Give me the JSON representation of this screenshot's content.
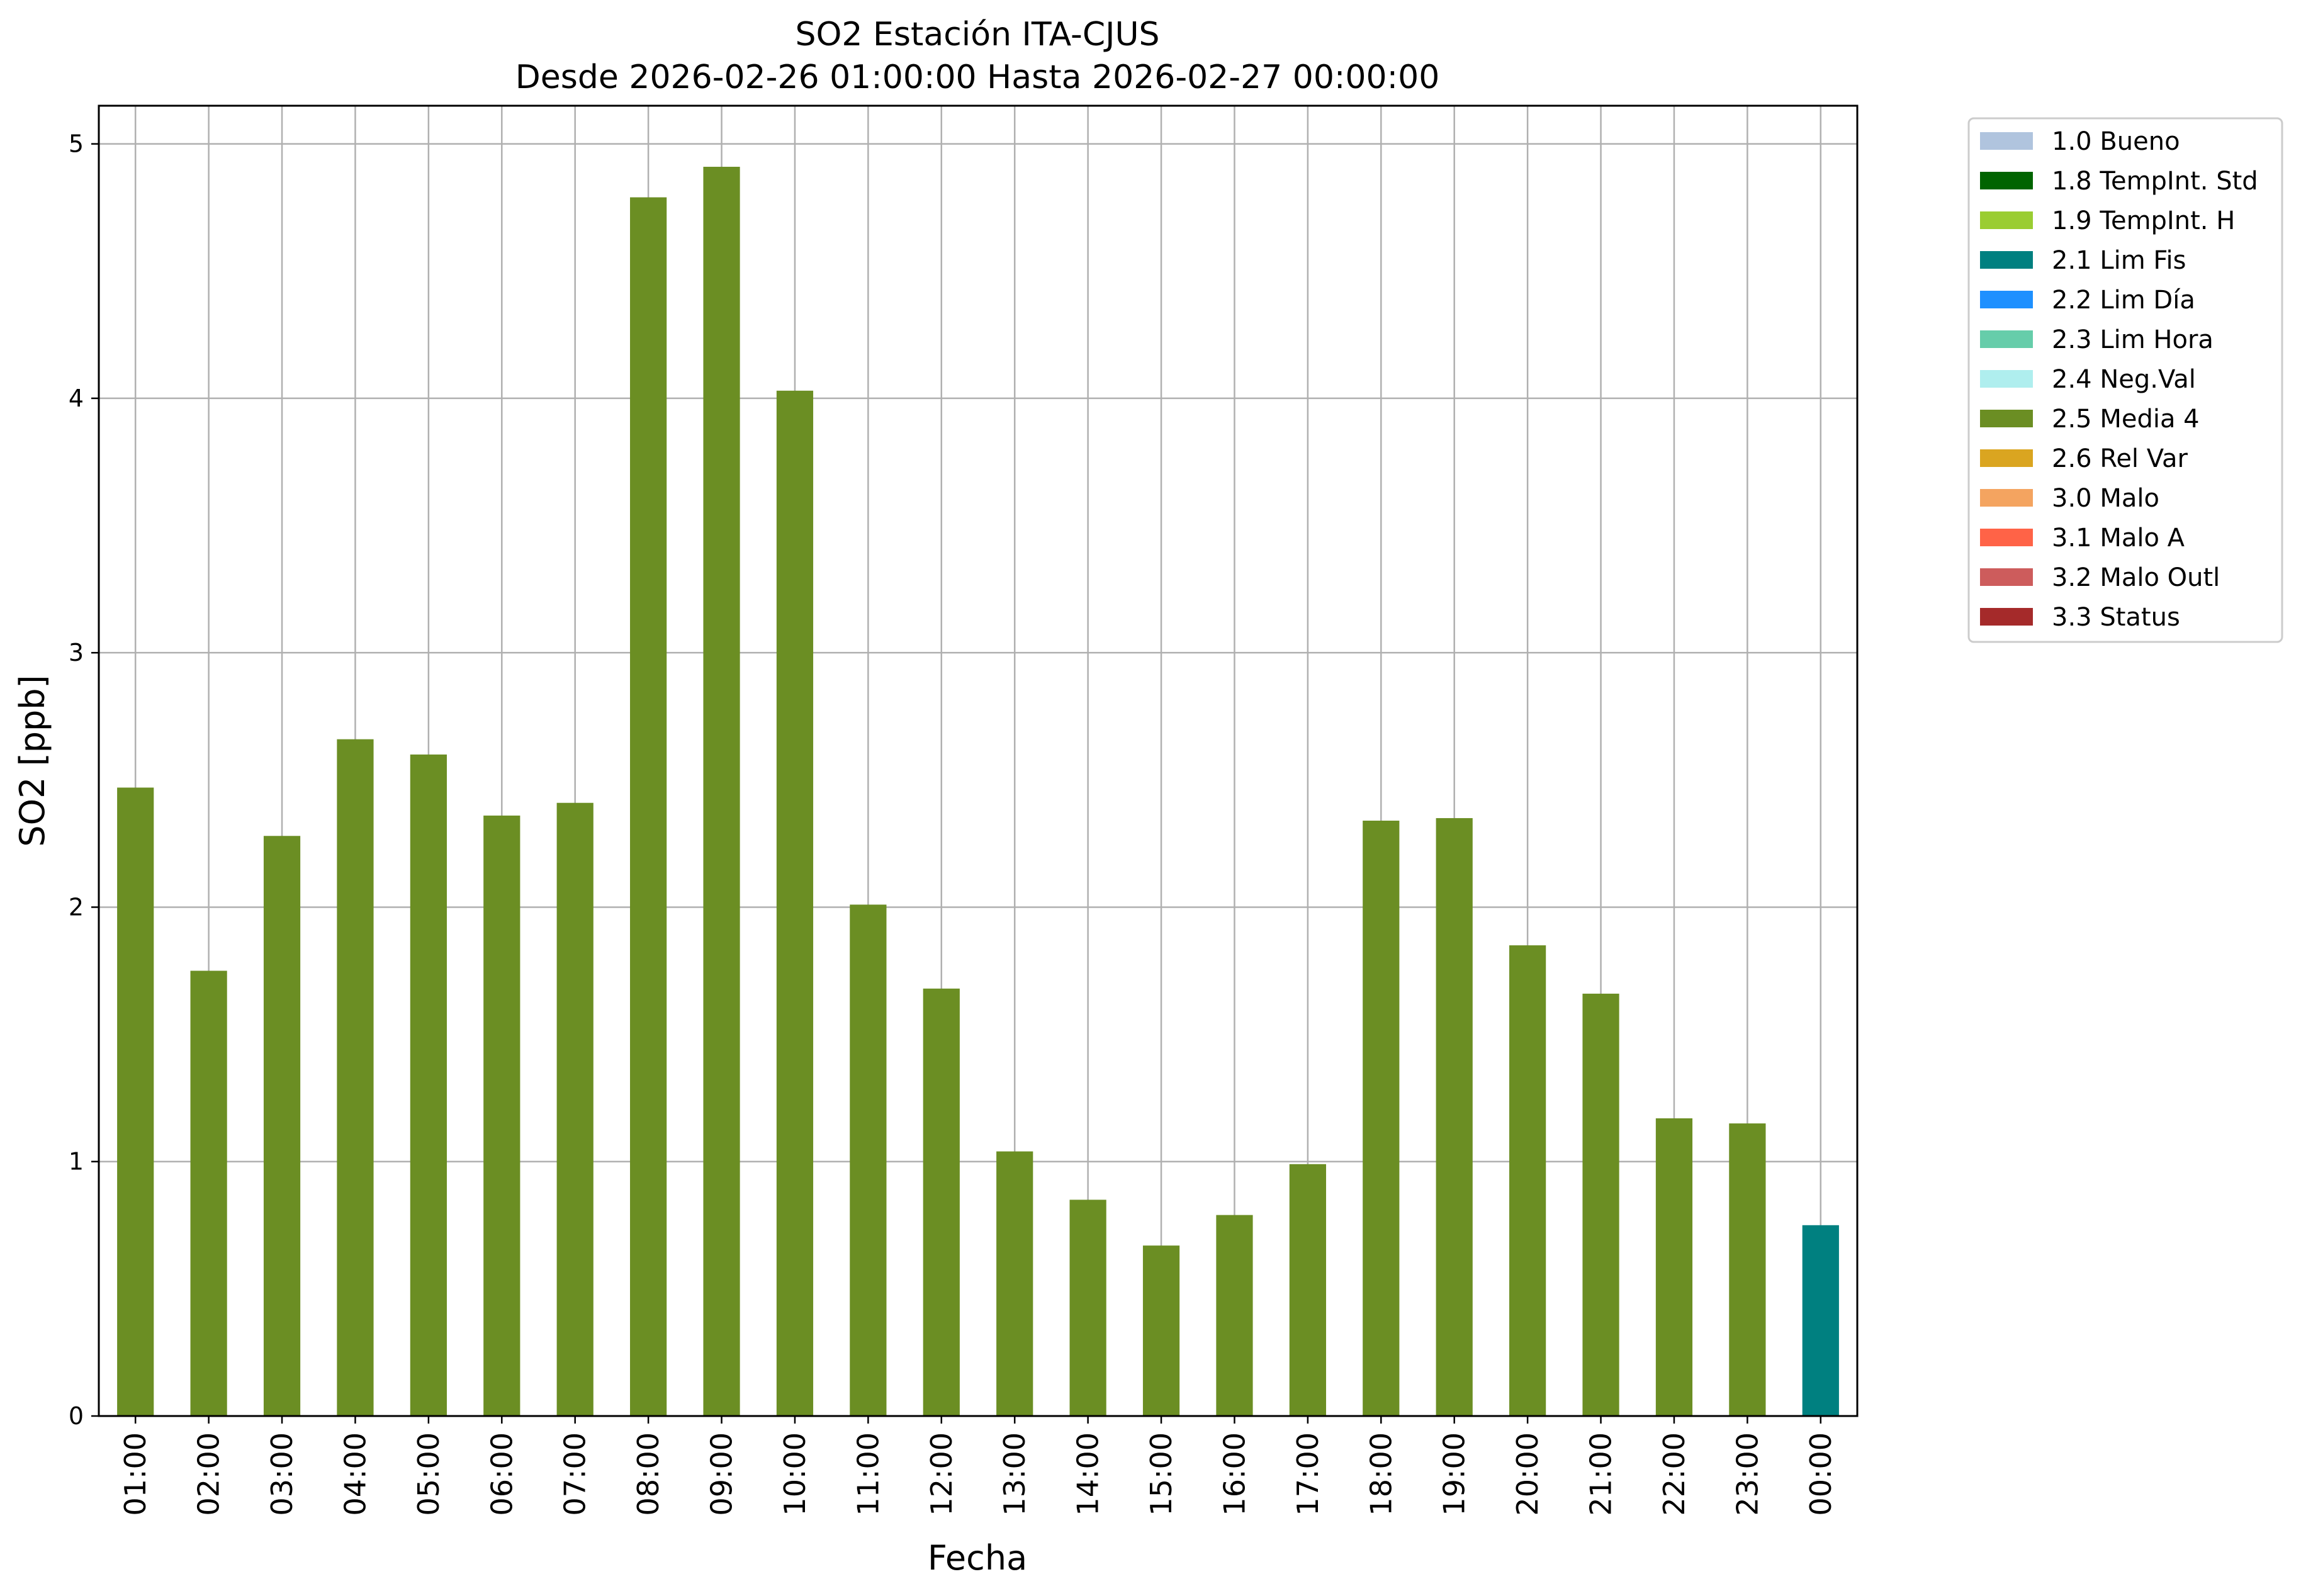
{
  "chart_data": {
    "type": "bar",
    "title": "SO2 Estación ITA-CJUS",
    "subtitle": "Desde 2026-02-26 01:00:00 Hasta 2026-02-27 00:00:00",
    "xlabel": "Fecha",
    "ylabel": "SO2 [ppb]",
    "ylim": [
      0,
      5.15
    ],
    "yticks": [
      0,
      1,
      2,
      3,
      4,
      5
    ],
    "grid": true,
    "legend_position": "outside-right",
    "categories": [
      "01:00",
      "02:00",
      "03:00",
      "04:00",
      "05:00",
      "06:00",
      "07:00",
      "08:00",
      "09:00",
      "10:00",
      "11:00",
      "12:00",
      "13:00",
      "14:00",
      "15:00",
      "16:00",
      "17:00",
      "18:00",
      "19:00",
      "20:00",
      "21:00",
      "22:00",
      "23:00",
      "00:00"
    ],
    "values": [
      2.47,
      1.75,
      2.28,
      2.66,
      2.6,
      2.36,
      2.41,
      4.79,
      4.91,
      4.03,
      2.01,
      1.68,
      1.04,
      0.85,
      0.67,
      0.79,
      0.99,
      2.34,
      2.35,
      1.85,
      1.66,
      1.17,
      1.15,
      0.75
    ],
    "bar_flags": [
      "2.5 Media 4",
      "2.5 Media 4",
      "2.5 Media 4",
      "2.5 Media 4",
      "2.5 Media 4",
      "2.5 Media 4",
      "2.5 Media 4",
      "2.5 Media 4",
      "2.5 Media 4",
      "2.5 Media 4",
      "2.5 Media 4",
      "2.5 Media 4",
      "2.5 Media 4",
      "2.5 Media 4",
      "2.5 Media 4",
      "2.5 Media 4",
      "2.5 Media 4",
      "2.5 Media 4",
      "2.5 Media 4",
      "2.5 Media 4",
      "2.5 Media 4",
      "2.5 Media 4",
      "2.5 Media 4",
      "2.1 Lim Fis"
    ],
    "legend": [
      {
        "label": "1.0 Bueno",
        "color": "#b0c4de"
      },
      {
        "label": "1.8 TempInt. Std",
        "color": "#006400"
      },
      {
        "label": "1.9 TempInt. H",
        "color": "#9acd32"
      },
      {
        "label": "2.1 Lim Fis",
        "color": "#008080"
      },
      {
        "label": "2.2 Lim Día",
        "color": "#1e90ff"
      },
      {
        "label": "2.3 Lim Hora",
        "color": "#66cdaa"
      },
      {
        "label": "2.4 Neg.Val",
        "color": "#afeeee"
      },
      {
        "label": "2.5 Media 4",
        "color": "#6b8e23"
      },
      {
        "label": "2.6 Rel Var",
        "color": "#daa520"
      },
      {
        "label": "3.0 Malo",
        "color": "#f4a460"
      },
      {
        "label": "3.1 Malo A",
        "color": "#ff6347"
      },
      {
        "label": "3.2 Malo Outl",
        "color": "#cd5c5c"
      },
      {
        "label": "3.3 Status",
        "color": "#a52a2a"
      }
    ]
  }
}
